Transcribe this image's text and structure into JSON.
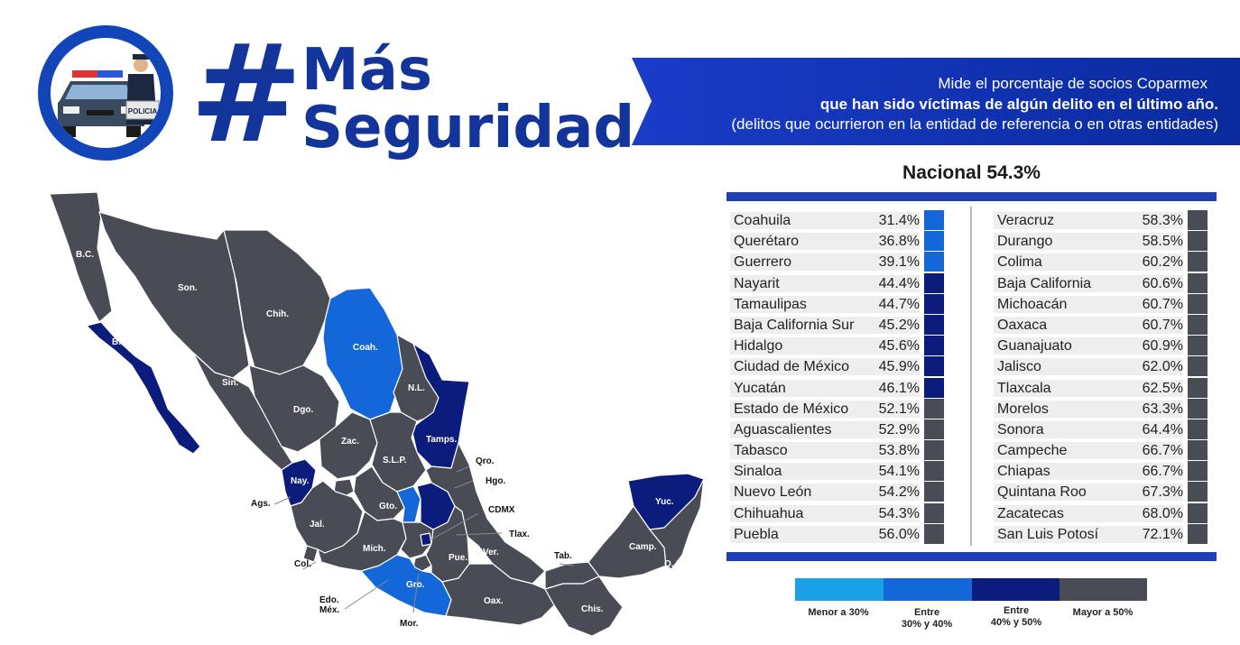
{
  "header": {
    "hash_symbol": "#",
    "title_line1": "Más",
    "title_line2": "Seguridad",
    "logo_badge": "POLICIA"
  },
  "banner": {
    "line1": "Mide el porcentaje de socios Coparmex",
    "line2": "que han sido víctimas de algún delito en el último año.",
    "line3": "(delitos que ocurrieron en la entidad de referencia o en otras entidades)"
  },
  "national": {
    "label": "Nacional 54.3%"
  },
  "colors": {
    "menor_30": "#1aa0e6",
    "entre_30_40": "#1467d8",
    "entre_40_50": "#0c1c7c",
    "mayor_50": "#4a4c55",
    "title_blue": "#13349a",
    "banner_blue": "#0f3fb8"
  },
  "chart_data": {
    "type": "table",
    "title": "Nacional 54.3%",
    "left_column": [
      {
        "state": "Coahuila",
        "value": "31.4%",
        "category": "entre_30_40"
      },
      {
        "state": "Querétaro",
        "value": "36.8%",
        "category": "entre_30_40"
      },
      {
        "state": "Guerrero",
        "value": "39.1%",
        "category": "entre_30_40"
      },
      {
        "state": "Nayarit",
        "value": "44.4%",
        "category": "entre_40_50"
      },
      {
        "state": "Tamaulipas",
        "value": "44.7%",
        "category": "entre_40_50"
      },
      {
        "state": "Baja California Sur",
        "value": "45.2%",
        "category": "entre_40_50"
      },
      {
        "state": "Hidalgo",
        "value": "45.6%",
        "category": "entre_40_50"
      },
      {
        "state": "Ciudad de México",
        "value": "45.9%",
        "category": "entre_40_50"
      },
      {
        "state": "Yucatán",
        "value": "46.1%",
        "category": "entre_40_50"
      },
      {
        "state": "Estado de México",
        "value": "52.1%",
        "category": "mayor_50"
      },
      {
        "state": "Aguascalientes",
        "value": "52.9%",
        "category": "mayor_50"
      },
      {
        "state": "Tabasco",
        "value": "53.8%",
        "category": "mayor_50"
      },
      {
        "state": "Sinaloa",
        "value": "54.1%",
        "category": "mayor_50"
      },
      {
        "state": "Nuevo León",
        "value": "54.2%",
        "category": "mayor_50"
      },
      {
        "state": "Chihuahua",
        "value": "54.3%",
        "category": "mayor_50"
      },
      {
        "state": "Puebla",
        "value": "56.0%",
        "category": "mayor_50"
      }
    ],
    "right_column": [
      {
        "state": "Veracruz",
        "value": "58.3%",
        "category": "mayor_50"
      },
      {
        "state": "Durango",
        "value": "58.5%",
        "category": "mayor_50"
      },
      {
        "state": "Colima",
        "value": "60.2%",
        "category": "mayor_50"
      },
      {
        "state": "Baja California",
        "value": "60.6%",
        "category": "mayor_50"
      },
      {
        "state": "Michoacán",
        "value": "60.7%",
        "category": "mayor_50"
      },
      {
        "state": "Oaxaca",
        "value": "60.7%",
        "category": "mayor_50"
      },
      {
        "state": "Guanajuato",
        "value": "60.9%",
        "category": "mayor_50"
      },
      {
        "state": "Jalisco",
        "value": "62.0%",
        "category": "mayor_50"
      },
      {
        "state": "Tlaxcala",
        "value": "62.5%",
        "category": "mayor_50"
      },
      {
        "state": "Morelos",
        "value": "63.3%",
        "category": "mayor_50"
      },
      {
        "state": "Sonora",
        "value": "64.4%",
        "category": "mayor_50"
      },
      {
        "state": "Campeche",
        "value": "66.7%",
        "category": "mayor_50"
      },
      {
        "state": "Chiapas",
        "value": "66.7%",
        "category": "mayor_50"
      },
      {
        "state": "Quintana Roo",
        "value": "67.3%",
        "category": "mayor_50"
      },
      {
        "state": "Zacatecas",
        "value": "68.0%",
        "category": "mayor_50"
      },
      {
        "state": "San Luis Potosí",
        "value": "72.1%",
        "category": "mayor_50"
      }
    ]
  },
  "legend": [
    {
      "category": "menor_30",
      "label": "Menor a 30%"
    },
    {
      "category": "entre_30_40",
      "label": "Entre\n30% y 40%"
    },
    {
      "category": "entre_40_50",
      "label": "Entre\n40% y 50%"
    },
    {
      "category": "mayor_50",
      "label": "Mayor a 50%"
    }
  ],
  "map_labels": [
    {
      "text": "B.C.",
      "style": "light"
    },
    {
      "text": "Son.",
      "style": "light"
    },
    {
      "text": "Chih.",
      "style": "light"
    },
    {
      "text": "B.C.S.",
      "style": "light"
    },
    {
      "text": "Coah.",
      "style": "light"
    },
    {
      "text": "Sin.",
      "style": "light"
    },
    {
      "text": "N.L.",
      "style": "light"
    },
    {
      "text": "Dgo.",
      "style": "light"
    },
    {
      "text": "Tamps.",
      "style": "light"
    },
    {
      "text": "Zac.",
      "style": "light"
    },
    {
      "text": "S.L.P.",
      "style": "light"
    },
    {
      "text": "Qro.",
      "style": "dark"
    },
    {
      "text": "Nay.",
      "style": "light"
    },
    {
      "text": "Hgo.",
      "style": "dark"
    },
    {
      "text": "Ags.",
      "style": "dark"
    },
    {
      "text": "Gto.",
      "style": "light"
    },
    {
      "text": "CDMX",
      "style": "dark"
    },
    {
      "text": "Jal.",
      "style": "light"
    },
    {
      "text": "Tlax.",
      "style": "dark"
    },
    {
      "text": "Yuc.",
      "style": "light"
    },
    {
      "text": "Mich.",
      "style": "light"
    },
    {
      "text": "Pue.",
      "style": "light"
    },
    {
      "text": "Ver.",
      "style": "light"
    },
    {
      "text": "Tab.",
      "style": "dark"
    },
    {
      "text": "Camp.",
      "style": "light"
    },
    {
      "text": "Q. Roo.",
      "style": "light"
    },
    {
      "text": "Col.",
      "style": "dark"
    },
    {
      "text": "Gro.",
      "style": "light"
    },
    {
      "text": "Oax.",
      "style": "light"
    },
    {
      "text": "Edo.\nMéx.",
      "style": "dark"
    },
    {
      "text": "Chis.",
      "style": "light"
    },
    {
      "text": "Mor.",
      "style": "dark"
    }
  ]
}
